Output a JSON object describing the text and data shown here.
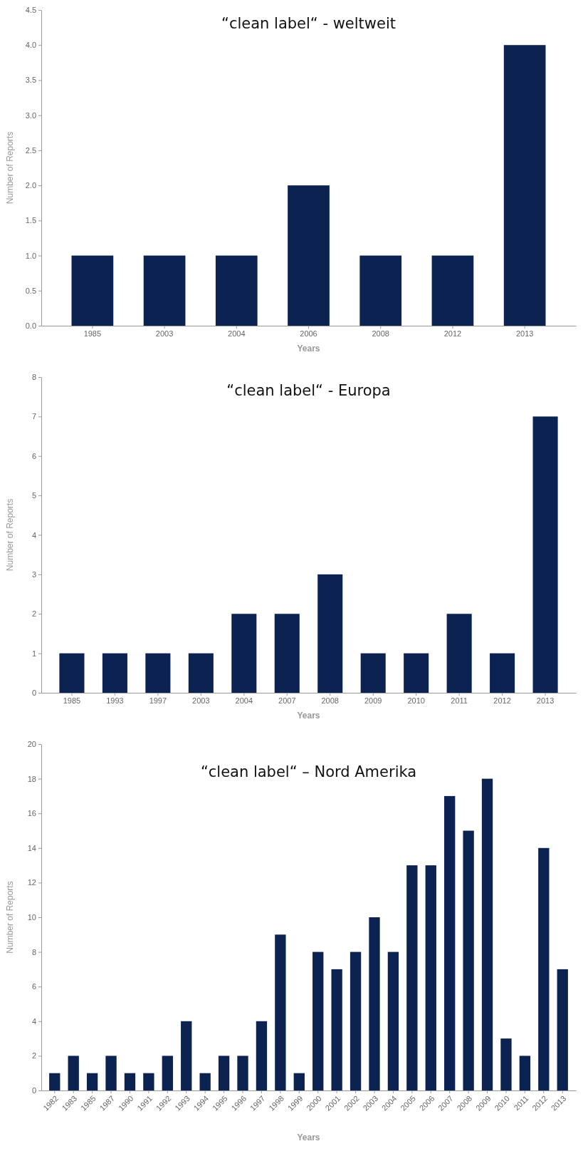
{
  "chart_data": [
    {
      "type": "bar",
      "title": "“clean label“ - weltweit",
      "xlabel": "Years",
      "ylabel": "Number of Reports",
      "categories": [
        "1985",
        "2003",
        "2004",
        "2006",
        "2008",
        "2012",
        "2013"
      ],
      "values": [
        1,
        1,
        1,
        2,
        1,
        1,
        4
      ],
      "color": "#0c2352",
      "ylim": [
        0,
        4.5
      ],
      "yticks": [
        {
          "value": 0,
          "label": "0.0"
        },
        {
          "value": 0.5,
          "label": "0.5"
        },
        {
          "value": 1,
          "label": "1.0"
        },
        {
          "value": 1.5,
          "label": "1.5"
        },
        {
          "value": 2,
          "label": "2.0"
        },
        {
          "value": 2.5,
          "label": "2.5"
        },
        {
          "value": 3,
          "label": "3.0"
        },
        {
          "value": 3.5,
          "label": "3.5"
        },
        {
          "value": 4,
          "label": "4.0"
        },
        {
          "value": 4.5,
          "label": "4.5"
        }
      ],
      "grid": false
    },
    {
      "type": "bar",
      "title": "“clean label“ - Europa",
      "xlabel": "Years",
      "ylabel": "Number of Reports",
      "categories": [
        "1985",
        "1993",
        "1997",
        "2003",
        "2004",
        "2007",
        "2008",
        "2009",
        "2010",
        "2011",
        "2012",
        "2013"
      ],
      "values": [
        1,
        1,
        1,
        1,
        2,
        2,
        3,
        1,
        1,
        2,
        1,
        7
      ],
      "color": "#0c2352",
      "ylim": [
        0,
        8
      ],
      "yticks": [
        0,
        1,
        2,
        3,
        4,
        5,
        6,
        7,
        8
      ],
      "grid": false
    },
    {
      "type": "bar",
      "title": "“clean label“ – Nord Amerika",
      "xlabel": "Years",
      "ylabel": "Number of Reports",
      "categories": [
        "1982",
        "1983",
        "1985",
        "1987",
        "1990",
        "1991",
        "1992",
        "1993",
        "1994",
        "1995",
        "1996",
        "1997",
        "1998",
        "1999",
        "2000",
        "2001",
        "2002",
        "2003",
        "2004",
        "2005",
        "2006",
        "2007",
        "2008",
        "2009",
        "2010",
        "2011",
        "2012",
        "2013"
      ],
      "values": [
        1,
        2,
        1,
        2,
        1,
        1,
        2,
        4,
        1,
        2,
        2,
        4,
        9,
        1,
        8,
        7,
        8,
        10,
        8,
        13,
        13,
        17,
        15,
        18,
        3,
        2,
        14,
        7
      ],
      "color": "#0c2352",
      "ylim": [
        0,
        20
      ],
      "yticks": [
        0,
        2,
        4,
        6,
        8,
        10,
        12,
        14,
        16,
        18,
        20
      ],
      "grid": false
    }
  ]
}
